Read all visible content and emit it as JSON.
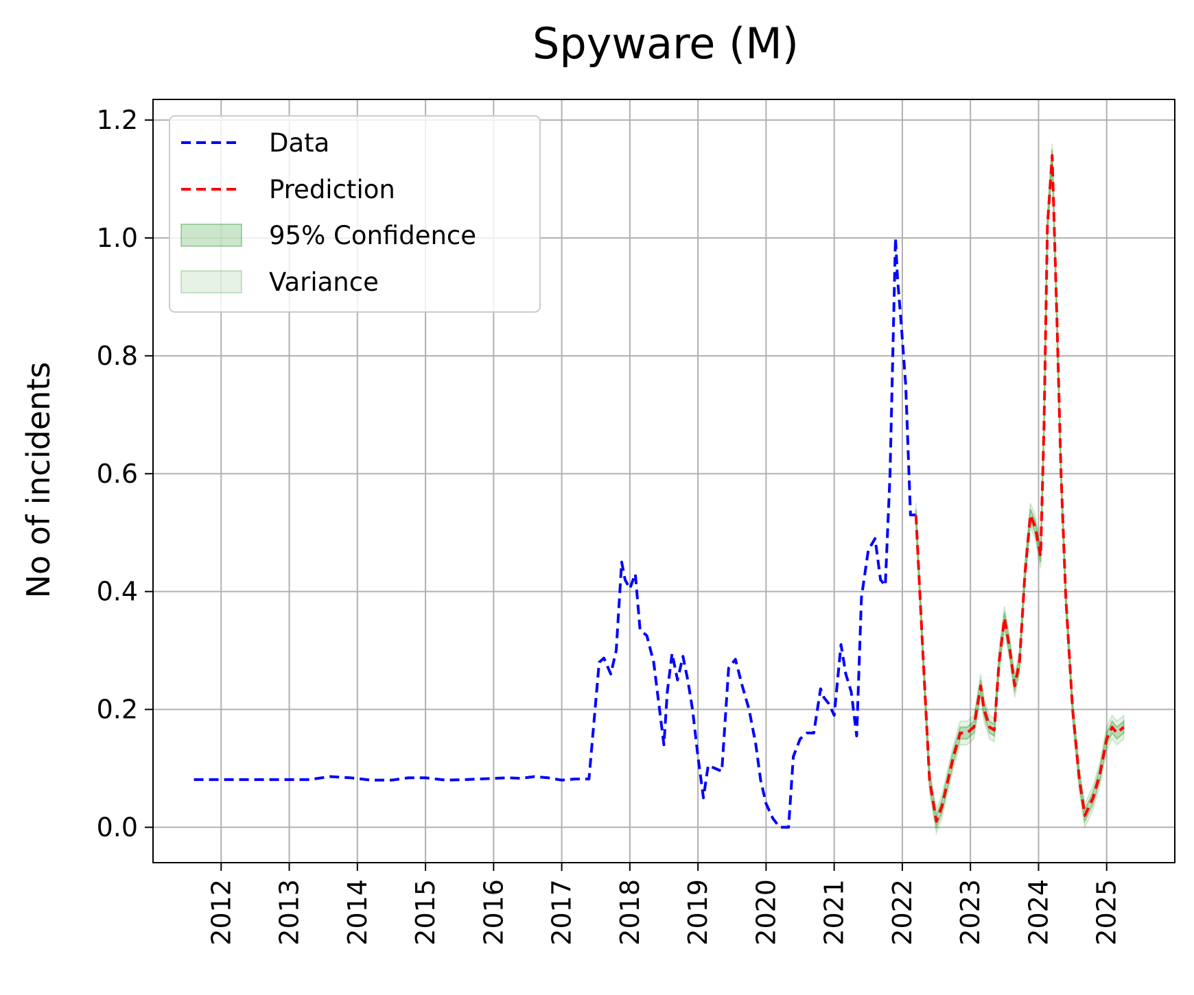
{
  "chart_data": {
    "type": "line",
    "title": "Spyware (M)",
    "xlabel": "",
    "ylabel": "No of incidents",
    "xlim": [
      2011.0,
      2026.0
    ],
    "ylim": [
      -0.06,
      1.235
    ],
    "x_ticks": [
      2012,
      2013,
      2014,
      2015,
      2016,
      2017,
      2018,
      2019,
      2020,
      2021,
      2022,
      2023,
      2024,
      2025
    ],
    "x_tick_labels": [
      "2012",
      "2013",
      "2014",
      "2015",
      "2016",
      "2017",
      "2018",
      "2019",
      "2020",
      "2021",
      "2022",
      "2023",
      "2024",
      "2025"
    ],
    "y_ticks": [
      0.0,
      0.2,
      0.4,
      0.6,
      0.8,
      1.0,
      1.2
    ],
    "y_tick_labels": [
      "0.0",
      "0.2",
      "0.4",
      "0.6",
      "0.8",
      "1.0",
      "1.2"
    ],
    "grid": true,
    "legend_position": "top-left",
    "legend": [
      "Data",
      "Prediction",
      "95% Confidence",
      "Variance"
    ],
    "series": [
      {
        "name": "Data",
        "color": "#0000ff",
        "style": "dashed",
        "x": [
          2011.6,
          2012.0,
          2012.5,
          2013.0,
          2013.3,
          2013.6,
          2013.9,
          2014.2,
          2014.5,
          2014.75,
          2015.0,
          2015.3,
          2015.6,
          2016.0,
          2016.2,
          2016.4,
          2016.6,
          2016.8,
          2017.0,
          2017.2,
          2017.4,
          2017.55,
          2017.62,
          2017.72,
          2017.8,
          2017.88,
          2017.93,
          2018.0,
          2018.08,
          2018.15,
          2018.25,
          2018.35,
          2018.5,
          2018.55,
          2018.62,
          2018.7,
          2018.78,
          2018.85,
          2018.92,
          2019.0,
          2019.08,
          2019.15,
          2019.25,
          2019.35,
          2019.45,
          2019.55,
          2019.65,
          2019.75,
          2019.85,
          2019.92,
          2020.0,
          2020.1,
          2020.2,
          2020.33,
          2020.4,
          2020.5,
          2020.6,
          2020.7,
          2020.8,
          2020.85,
          2020.92,
          2021.0,
          2021.1,
          2021.17,
          2021.25,
          2021.33,
          2021.4,
          2021.5,
          2021.6,
          2021.68,
          2021.75,
          2021.82,
          2021.9,
          2021.93,
          2021.98,
          2022.05,
          2022.12,
          2022.2
        ],
        "y": [
          0.081,
          0.081,
          0.081,
          0.081,
          0.081,
          0.086,
          0.084,
          0.08,
          0.08,
          0.084,
          0.084,
          0.08,
          0.081,
          0.083,
          0.084,
          0.083,
          0.086,
          0.084,
          0.08,
          0.082,
          0.082,
          0.28,
          0.287,
          0.26,
          0.3,
          0.45,
          0.42,
          0.405,
          0.43,
          0.335,
          0.325,
          0.28,
          0.14,
          0.23,
          0.295,
          0.25,
          0.29,
          0.25,
          0.2,
          0.12,
          0.05,
          0.105,
          0.1,
          0.095,
          0.27,
          0.285,
          0.24,
          0.2,
          0.14,
          0.08,
          0.04,
          0.015,
          0.0,
          0.0,
          0.12,
          0.15,
          0.16,
          0.16,
          0.235,
          0.22,
          0.21,
          0.19,
          0.31,
          0.26,
          0.23,
          0.155,
          0.39,
          0.47,
          0.49,
          0.42,
          0.41,
          0.6,
          1.0,
          0.93,
          0.86,
          0.75,
          0.53,
          0.53
        ]
      },
      {
        "name": "Prediction",
        "color": "#ff0000",
        "style": "dashed",
        "x": [
          2022.2,
          2022.3,
          2022.4,
          2022.5,
          2022.58,
          2022.65,
          2022.75,
          2022.85,
          2022.95,
          2023.05,
          2023.15,
          2023.2,
          2023.28,
          2023.35,
          2023.42,
          2023.5,
          2023.58,
          2023.65,
          2023.72,
          2023.8,
          2023.88,
          2023.95,
          2024.03,
          2024.08,
          2024.13,
          2024.2,
          2024.27,
          2024.33,
          2024.4,
          2024.5,
          2024.6,
          2024.68,
          2024.72,
          2024.8,
          2024.9,
          2025.0,
          2025.08,
          2025.15,
          2025.25
        ],
        "y": [
          0.53,
          0.3,
          0.08,
          0.01,
          0.035,
          0.07,
          0.12,
          0.16,
          0.16,
          0.17,
          0.24,
          0.2,
          0.17,
          0.165,
          0.28,
          0.355,
          0.3,
          0.24,
          0.28,
          0.43,
          0.53,
          0.51,
          0.46,
          0.68,
          1.02,
          1.14,
          0.86,
          0.6,
          0.39,
          0.2,
          0.08,
          0.02,
          0.03,
          0.05,
          0.09,
          0.15,
          0.17,
          0.16,
          0.17
        ]
      }
    ],
    "bands": [
      {
        "name": "95% Confidence",
        "color": "#008000",
        "opacity": 0.2,
        "half_width": 0.01
      },
      {
        "name": "Variance",
        "color": "#008000",
        "opacity": 0.1,
        "half_width": 0.02
      }
    ]
  }
}
